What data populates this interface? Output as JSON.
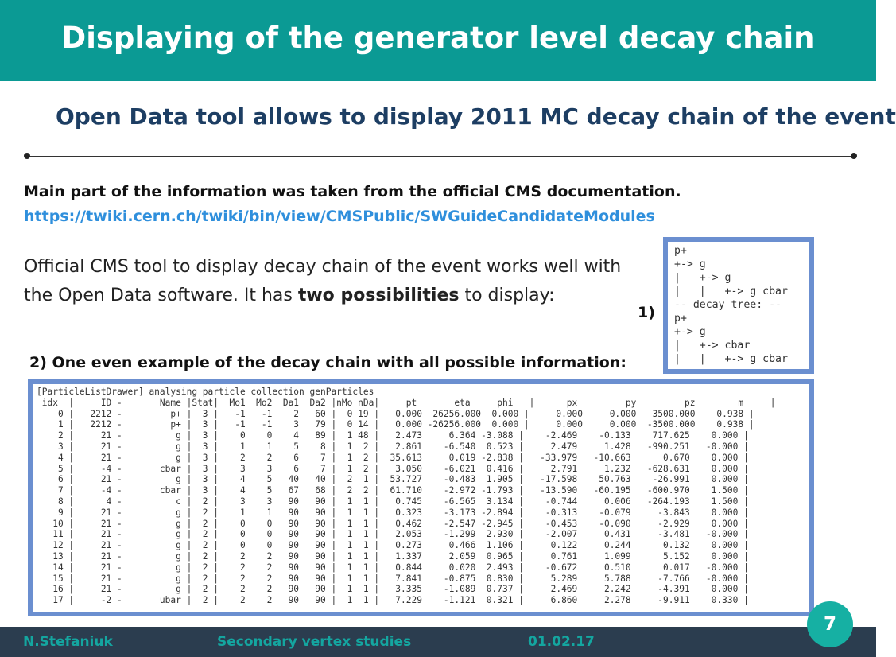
{
  "title": "Displaying of the generator level decay chain",
  "subtitle": "Open Data tool allows to display 2011 MC decay chain of the event",
  "info": {
    "line": "Main part of the information was taken from the official CMS documentation.",
    "link": "https://twiki.cern.ch/twiki/bin/view/CMSPublic/SWGuideCandidateModules"
  },
  "body": {
    "part1": "Official CMS tool to display decay chain of the event works well with the Open Data software.  It has ",
    "bold": "two possibilities",
    "part2": " to display:"
  },
  "labels": {
    "one": "1)",
    "two": "2) One even example of the decay chain with all possible information:"
  },
  "tree_lines": [
    "p+",
    "+-> g",
    "|   +-> g",
    "|   |   +-> g cbar",
    "-- decay tree: --",
    "p+",
    "+-> g",
    "|   +-> cbar",
    "|   |   +-> g cbar"
  ],
  "table_lines": [
    "[ParticleListDrawer] analysing particle collection genParticles",
    " idx  |     ID -       Name |Stat|  Mo1  Mo2  Da1  Da2 |nMo nDa|     pt       eta     phi   |      px         py         pz        m     |",
    "    0 |   2212 -         p+ |  3 |   -1   -1    2   60 |  0 19 |   0.000  26256.000  0.000 |     0.000     0.000   3500.000    0.938 |",
    "    1 |   2212 -         p+ |  3 |   -1   -1    3   79 |  0 14 |   0.000 -26256.000  0.000 |     0.000     0.000  -3500.000    0.938 |",
    "    2 |     21 -          g |  3 |    0    0    4   89 |  1 48 |   2.473     6.364 -3.088 |    -2.469    -0.133    717.625    0.000 |",
    "    3 |     21 -          g |  3 |    1    1    5    8 |  1  2 |   2.861    -6.540  0.523 |     2.479     1.428   -990.251   -0.000 |",
    "    4 |     21 -          g |  3 |    2    2    6    7 |  1  2 |  35.613     0.019 -2.838 |   -33.979   -10.663      0.670    0.000 |",
    "    5 |     -4 -       cbar |  3 |    3    3    6    7 |  1  2 |   3.050    -6.021  0.416 |     2.791     1.232   -628.631    0.000 |",
    "    6 |     21 -          g |  3 |    4    5   40   40 |  2  1 |  53.727    -0.483  1.905 |   -17.598    50.763    -26.991    0.000 |",
    "    7 |     -4 -       cbar |  3 |    4    5   67   68 |  2  2 |  61.710    -2.972 -1.793 |   -13.590   -60.195   -600.970    1.500 |",
    "    8 |      4 -          c |  2 |    3    3   90   90 |  1  1 |   0.745    -6.565  3.134 |    -0.744     0.006   -264.193    1.500 |",
    "    9 |     21 -          g |  2 |    1    1   90   90 |  1  1 |   0.323    -3.173 -2.894 |    -0.313    -0.079     -3.843    0.000 |",
    "   10 |     21 -          g |  2 |    0    0   90   90 |  1  1 |   0.462    -2.547 -2.945 |    -0.453    -0.090     -2.929    0.000 |",
    "   11 |     21 -          g |  2 |    0    0   90   90 |  1  1 |   2.053    -1.299  2.930 |    -2.007     0.431     -3.481   -0.000 |",
    "   12 |     21 -          g |  2 |    0    0   90   90 |  1  1 |   0.273     0.466  1.106 |     0.122     0.244      0.132    0.000 |",
    "   13 |     21 -          g |  2 |    2    2   90   90 |  1  1 |   1.337     2.059  0.965 |     0.761     1.099      5.152    0.000 |",
    "   14 |     21 -          g |  2 |    2    2   90   90 |  1  1 |   0.844     0.020  2.493 |    -0.672     0.510      0.017   -0.000 |",
    "   15 |     21 -          g |  2 |    2    2   90   90 |  1  1 |   7.841    -0.875  0.830 |     5.289     5.788     -7.766   -0.000 |",
    "   16 |     21 -          g |  2 |    2    2   90   90 |  1  1 |   3.335    -1.089  0.737 |     2.469     2.242     -4.391    0.000 |",
    "   17 |     -2 -       ubar |  2 |    2    2   90   90 |  1  1 |   7.229    -1.121  0.321 |     6.860     2.278     -9.911    0.330 |"
  ],
  "footer": {
    "author": "N.Stefaniuk",
    "topic": "Secondary vertex studies",
    "date": "01.02.17"
  },
  "page_number": "7",
  "colors": {
    "title_bar": "#0b9a94",
    "subtitle": "#1d3e63",
    "link": "#2f8fdc",
    "frame": "#6b8fd0",
    "footer_bg": "#2b3d4f",
    "footer_text": "#14a6a0",
    "badge": "#16b0a3"
  }
}
